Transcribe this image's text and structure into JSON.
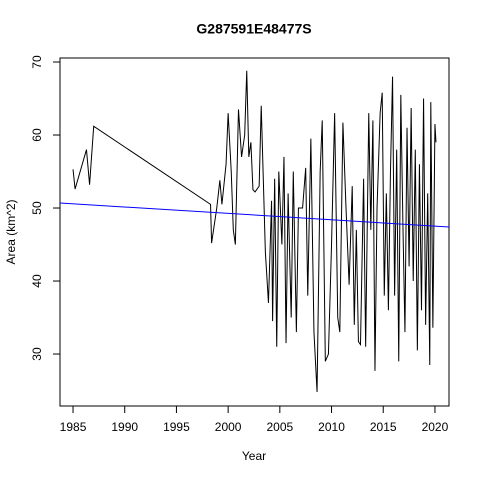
{
  "chart_data": {
    "type": "line",
    "title": "G287591E48477S",
    "xlabel": "Year",
    "ylabel": "Area (km^2)",
    "xlim": [
      1983.74,
      2021.36
    ],
    "ylim": [
      22.88,
      70.55
    ],
    "xticks": [
      1985,
      1990,
      1995,
      2000,
      2005,
      2010,
      2015,
      2020
    ],
    "yticks": [
      30,
      40,
      50,
      60,
      70
    ],
    "series": [
      {
        "color": "#000000",
        "x": [
          1985.0,
          1985.2,
          1986.3,
          1986.6,
          1987.0,
          1998.3,
          1998.4,
          1998.9,
          1999.2,
          1999.4,
          1999.8,
          2000.0,
          2000.3,
          2000.5,
          2000.7,
          2001.0,
          2001.3,
          2001.6,
          2001.8,
          2002.0,
          2002.2,
          2002.4,
          2002.6,
          2003.0,
          2003.2,
          2003.6,
          2003.9,
          2004.2,
          2004.3,
          2004.5,
          2004.7,
          2004.9,
          2005.2,
          2005.4,
          2005.6,
          2005.8,
          2006.1,
          2006.3,
          2006.6,
          2006.8,
          2007.2,
          2007.5,
          2007.7,
          2008.0,
          2008.3,
          2008.6,
          2008.9,
          2009.1,
          2009.4,
          2009.7,
          2010.0,
          2010.3,
          2010.6,
          2010.8,
          2011.1,
          2011.4,
          2011.7,
          2012.0,
          2012.2,
          2012.4,
          2012.6,
          2012.8,
          2013.1,
          2013.3,
          2013.6,
          2013.8,
          2014.0,
          2014.2,
          2014.4,
          2014.7,
          2014.9,
          2015.1,
          2015.3,
          2015.5,
          2015.7,
          2015.9,
          2016.1,
          2016.3,
          2016.5,
          2016.7,
          2016.9,
          2017.1,
          2017.3,
          2017.5,
          2017.7,
          2017.9,
          2018.1,
          2018.3,
          2018.5,
          2018.7,
          2018.9,
          2019.1,
          2019.3,
          2019.5,
          2019.6,
          2019.8,
          2020.0,
          2020.1
        ],
        "values": [
          55.3,
          52.6,
          58,
          53.2,
          61.2,
          50.5,
          45.2,
          50,
          53.8,
          50.5,
          56,
          63,
          55,
          47,
          45,
          63.5,
          57,
          60,
          68.8,
          57,
          59,
          52.5,
          52.2,
          53,
          64,
          44,
          37,
          51,
          34.5,
          54,
          31,
          55,
          45,
          57,
          31.5,
          52,
          35,
          55,
          33,
          50,
          50,
          55.5,
          38,
          59.5,
          33,
          24.8,
          55,
          62,
          29,
          30,
          45,
          63,
          35,
          33,
          61.7,
          50,
          39.5,
          53,
          34,
          47,
          31.7,
          31.3,
          54,
          31,
          63,
          47,
          62,
          27.7,
          50,
          63,
          65.8,
          38,
          52,
          36,
          55,
          68,
          38,
          58,
          29,
          65.5,
          48,
          33,
          61,
          42,
          63.7,
          40,
          58,
          30.5,
          56,
          36,
          65,
          34,
          52,
          28.5,
          64.5,
          33.6,
          61.5,
          59
        ]
      },
      {
        "color": "#0000ff",
        "x": [
          1983.74,
          2021.36
        ],
        "values": [
          50.68,
          47.4
        ]
      }
    ]
  }
}
